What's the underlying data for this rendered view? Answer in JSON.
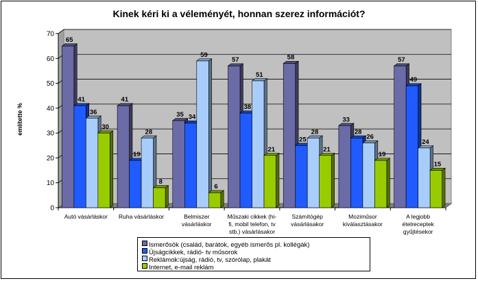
{
  "chart_data": {
    "type": "bar",
    "title": "Kinek kéri ki a véleményét, honnan szerez információt?",
    "ylabel": "említette %",
    "xlabel": "",
    "ylim": [
      0,
      70
    ],
    "yticks": [
      "0",
      "10",
      "20",
      "30",
      "40",
      "50",
      "60",
      "70"
    ],
    "grid": true,
    "legend_position": "bottom",
    "categories": [
      "Autó vásárláskor",
      "Ruha vásárláskor",
      "Belmiszer vásárláskor",
      "Műszaki cikkek (hi-fi, mobil telefon, tv stb.) vásárlásakor",
      "Számítógép vásárlásakor",
      "Moziműsor kiválasztásakor",
      "A legjobb ételreceptek gyűjtésekor"
    ],
    "series": [
      {
        "name": "Ismerősök (család, barátok, egyéb ismerős pl. kollégák)",
        "color": "#6B6BA8",
        "values": [
          65,
          41,
          35,
          57,
          58,
          33,
          57
        ]
      },
      {
        "name": "Újságcikkek, rádió- tv műsorok",
        "color": "#1F5BFF",
        "values": [
          41,
          19,
          34,
          38,
          25,
          28,
          49
        ]
      },
      {
        "name": "Reklámok:újság, rádió, tv, szórólap, plakát",
        "color": "#A9CDFB",
        "values": [
          36,
          28,
          59,
          51,
          28,
          26,
          24
        ]
      },
      {
        "name": "Internet, e-mail reklám",
        "color": "#99CC00",
        "values": [
          30,
          8,
          6,
          21,
          21,
          19,
          15
        ]
      }
    ]
  }
}
